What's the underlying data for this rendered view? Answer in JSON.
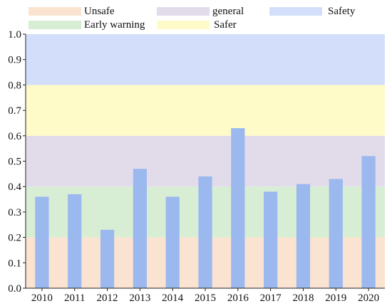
{
  "chart_data": {
    "type": "bar",
    "title": "",
    "xlabel": "",
    "ylabel": "",
    "categories": [
      "2010",
      "2011",
      "2012",
      "2013",
      "2014",
      "2015",
      "2016",
      "2017",
      "2018",
      "2019",
      "2020"
    ],
    "values": [
      0.36,
      0.37,
      0.23,
      0.47,
      0.36,
      0.44,
      0.63,
      0.38,
      0.41,
      0.43,
      0.52
    ],
    "ylim": [
      0,
      1.0
    ],
    "yticks": [
      "0.0",
      "0.1",
      "0.2",
      "0.3",
      "0.4",
      "0.5",
      "0.6",
      "0.7",
      "0.8",
      "0.9",
      "1.0"
    ],
    "bar_color": "#9bb8ef",
    "grid": false,
    "legend_position": "top",
    "zones": [
      {
        "name": "Unsafe",
        "from": 0.0,
        "to": 0.2,
        "color": "#fbe3d1"
      },
      {
        "name": "Early warning",
        "from": 0.2,
        "to": 0.4,
        "color": "#d8eed4"
      },
      {
        "name": "general",
        "from": 0.4,
        "to": 0.6,
        "color": "#e2dcea"
      },
      {
        "name": "Safer",
        "from": 0.6,
        "to": 0.8,
        "color": "#fefbc8"
      },
      {
        "name": "Safety",
        "from": 0.8,
        "to": 1.0,
        "color": "#d3dffa"
      }
    ]
  }
}
